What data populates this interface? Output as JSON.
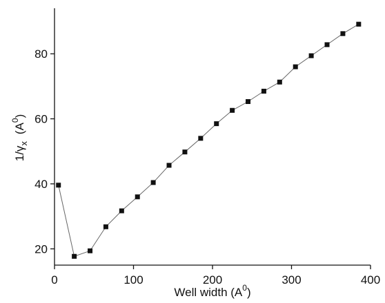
{
  "chart_data": {
    "type": "line",
    "x_label": [
      "Well width (A",
      "0",
      ")"
    ],
    "y_label": [
      "1/γ",
      "x",
      "(A",
      "0",
      ")"
    ],
    "x": [
      5,
      25,
      45,
      65,
      85,
      105,
      125,
      145,
      165,
      185,
      205,
      225,
      245,
      265,
      285,
      305,
      325,
      345,
      365,
      385
    ],
    "values": [
      39.6,
      17.7,
      19.4,
      26.8,
      31.7,
      36.0,
      40.4,
      45.7,
      49.8,
      54.0,
      58.5,
      62.6,
      65.3,
      68.5,
      71.3,
      76.0,
      79.4,
      82.8,
      86.2,
      89.1
    ],
    "color": "#111111",
    "xlim": [
      0,
      400
    ],
    "xticks": [
      0,
      100,
      200,
      300,
      400
    ],
    "ylim": [
      15,
      94
    ],
    "yticks": [
      20,
      40,
      60,
      80
    ]
  }
}
